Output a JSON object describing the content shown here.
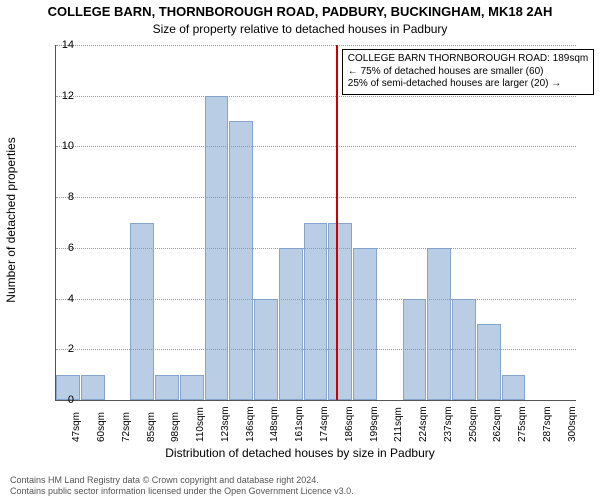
{
  "type": "histogram",
  "title": "COLLEGE BARN, THORNBOROUGH ROAD, PADBURY, BUCKINGHAM, MK18 2AH",
  "subtitle": "Size of property relative to detached houses in Padbury",
  "xlabel": "Distribution of detached houses by size in Padbury",
  "ylabel": "Number of detached properties",
  "ylim": [
    0,
    14
  ],
  "ytick_step": 2,
  "x_categories": [
    "47sqm",
    "60sqm",
    "72sqm",
    "85sqm",
    "98sqm",
    "110sqm",
    "123sqm",
    "136sqm",
    "148sqm",
    "161sqm",
    "174sqm",
    "186sqm",
    "199sqm",
    "211sqm",
    "224sqm",
    "237sqm",
    "250sqm",
    "262sqm",
    "275sqm",
    "287sqm",
    "300sqm"
  ],
  "values": [
    1,
    1,
    0,
    7,
    1,
    1,
    12,
    11,
    4,
    6,
    7,
    7,
    6,
    0,
    4,
    6,
    4,
    3,
    1,
    0,
    0
  ],
  "bar_fill": "#b9cde5",
  "bar_border": "#86a5cd",
  "grid_color": "#999999",
  "axis_color": "#555555",
  "reference_line": {
    "color": "#cc0000",
    "index": 11.3
  },
  "annotation": {
    "line1": "COLLEGE BARN THORNBOROUGH ROAD: 189sqm",
    "line2": "← 75% of detached houses are smaller (60)",
    "line3": "25% of semi-detached houses are larger (20) →"
  },
  "footer": {
    "line1": "Contains HM Land Registry data © Crown copyright and database right 2024.",
    "line2": "Contains public sector information licensed under the Open Government Licence v3.0."
  },
  "background": "#ffffff",
  "title_fontsize": 13,
  "subtitle_fontsize": 12,
  "label_fontsize": 12,
  "tick_fontsize": 10
}
